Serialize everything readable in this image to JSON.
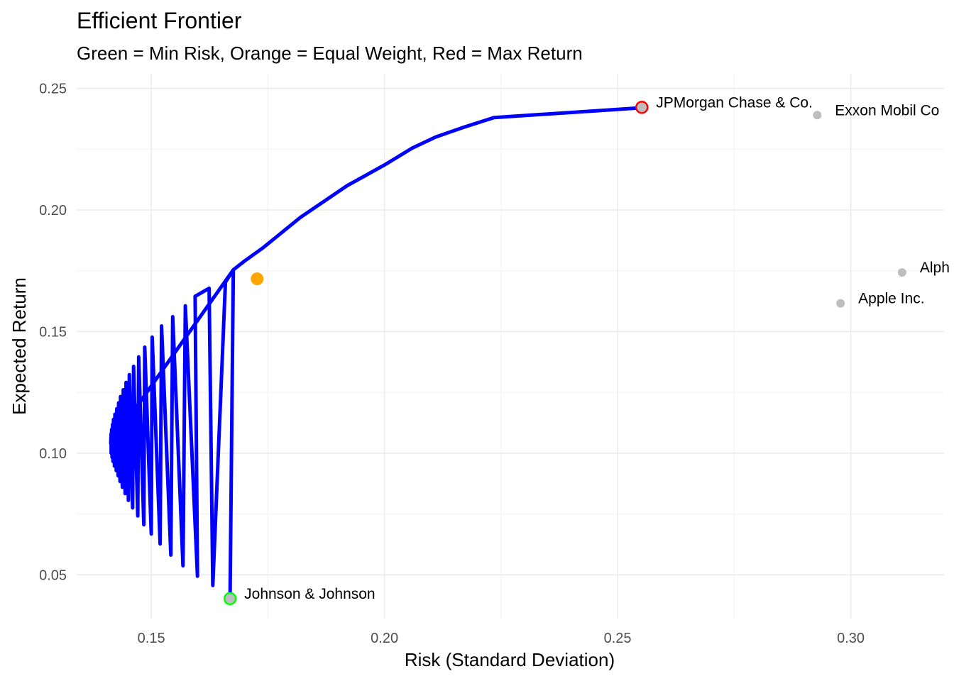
{
  "chart_data": {
    "type": "line",
    "title": "Efficient Frontier",
    "subtitle": "Green = Min Risk, Orange = Equal Weight, Red = Max Return",
    "xlabel": "Risk (Standard Deviation)",
    "ylabel": "Expected Return",
    "xlim": [
      0.134,
      0.32
    ],
    "ylim": [
      0.032,
      0.256
    ],
    "x_ticks": [
      0.15,
      0.2,
      0.25,
      0.3
    ],
    "x_tick_labels": [
      "0.15",
      "0.20",
      "0.25",
      "0.30"
    ],
    "y_ticks": [
      0.05,
      0.1,
      0.15,
      0.2,
      0.25
    ],
    "y_tick_labels": [
      "0.05",
      "0.10",
      "0.15",
      "0.20",
      "0.25"
    ],
    "grid": true,
    "frontier": {
      "color": "#0000ff",
      "points": [
        [
          0.1669,
          0.0402
        ],
        [
          0.1676,
          0.1754
        ],
        [
          0.1659,
          0.1703
        ],
        [
          0.1632,
          0.0456
        ],
        [
          0.1624,
          0.1678
        ],
        [
          0.1594,
          0.1645
        ],
        [
          0.1599,
          0.0494
        ],
        [
          0.1573,
          0.1606
        ],
        [
          0.1568,
          0.0537
        ],
        [
          0.1546,
          0.1561
        ],
        [
          0.1542,
          0.0581
        ],
        [
          0.1522,
          0.1523
        ],
        [
          0.1519,
          0.0627
        ],
        [
          0.1502,
          0.1477
        ],
        [
          0.15,
          0.0668
        ],
        [
          0.1486,
          0.1436
        ],
        [
          0.1484,
          0.0706
        ],
        [
          0.1473,
          0.1396
        ],
        [
          0.1471,
          0.0742
        ],
        [
          0.1462,
          0.1357
        ],
        [
          0.146,
          0.0775
        ],
        [
          0.1453,
          0.1323
        ],
        [
          0.1451,
          0.0806
        ],
        [
          0.1446,
          0.1291
        ],
        [
          0.1444,
          0.0834
        ],
        [
          0.144,
          0.1261
        ],
        [
          0.1438,
          0.086
        ],
        [
          0.1434,
          0.1233
        ],
        [
          0.1433,
          0.0884
        ],
        [
          0.143,
          0.1207
        ],
        [
          0.1429,
          0.0907
        ],
        [
          0.1426,
          0.1183
        ],
        [
          0.1425,
          0.0928
        ],
        [
          0.1422,
          0.116
        ],
        [
          0.1421,
          0.0947
        ],
        [
          0.1419,
          0.1139
        ],
        [
          0.1418,
          0.0966
        ],
        [
          0.1417,
          0.1118
        ],
        [
          0.1416,
          0.0983
        ],
        [
          0.1415,
          0.1098
        ],
        [
          0.1414,
          0.1
        ],
        [
          0.1414,
          0.108
        ],
        [
          0.1413,
          0.104
        ],
        [
          0.1676,
          0.1754
        ],
        [
          0.17,
          0.179
        ],
        [
          0.174,
          0.1845
        ],
        [
          0.182,
          0.197
        ],
        [
          0.192,
          0.21
        ],
        [
          0.2,
          0.2185
        ],
        [
          0.206,
          0.2255
        ],
        [
          0.211,
          0.23
        ],
        [
          0.217,
          0.234
        ],
        [
          0.2235,
          0.238
        ],
        [
          0.255,
          0.242
        ]
      ]
    },
    "highlights": [
      {
        "name": "Min Risk",
        "x": 0.1669,
        "y": 0.0402,
        "color": "#00ff00",
        "label": "Johnson & Johnson"
      },
      {
        "name": "Equal Weight",
        "x": 0.1727,
        "y": 0.1717,
        "color": "#ffa500"
      },
      {
        "name": "Max Return",
        "x": 0.2552,
        "y": 0.2422,
        "color": "#ff0000",
        "label": "JPMorgan Chase & Co."
      }
    ],
    "assets": [
      {
        "label": "Exxon Mobil Co",
        "x": 0.2928,
        "y": 0.239
      },
      {
        "label": "Alph",
        "x": 0.311,
        "y": 0.1743
      },
      {
        "label": "Apple Inc.",
        "x": 0.2978,
        "y": 0.1616
      }
    ],
    "asset_color": "#bebebe",
    "grid_color": "#ebebeb"
  }
}
